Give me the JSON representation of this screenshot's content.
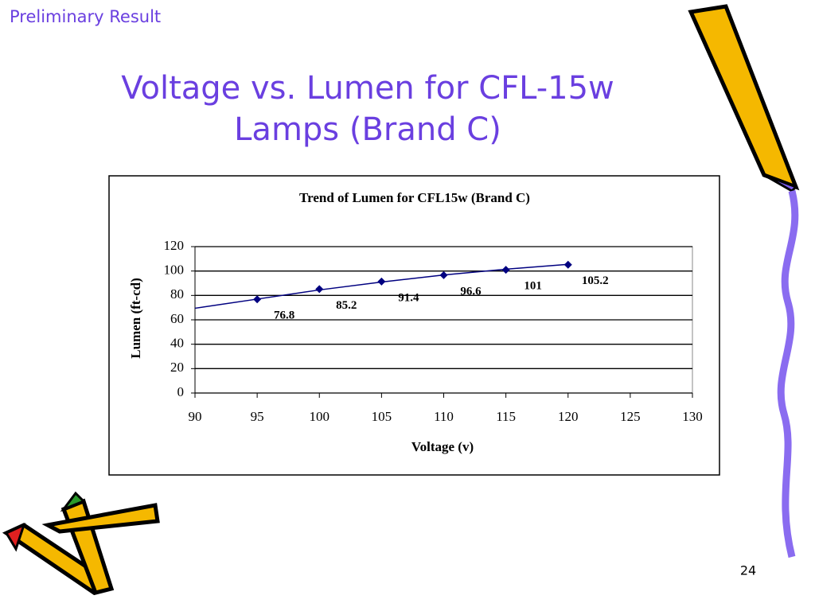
{
  "header_label": "Preliminary Result",
  "title_lines": [
    "Voltage vs. Lumen for CFL-15w",
    "Lamps (Brand C)"
  ],
  "page_number": "24",
  "chart_data": {
    "type": "scatter",
    "title": "Trend of Lumen for CFL15w (Brand C)",
    "x_label": "Voltage (v)",
    "y_label": "Lumen (ft-cd)",
    "x": [
      95,
      100,
      105,
      110,
      115,
      120
    ],
    "series": [
      {
        "color": "#000080",
        "values": [
          76.8,
          85.2,
          91.4,
          96.6,
          101,
          105.2
        ]
      }
    ],
    "trendline": {
      "color": "#000080",
      "x": [
        90,
        95,
        100,
        105,
        110,
        115,
        120
      ],
      "values": [
        69.5,
        77,
        84.5,
        91,
        96.8,
        101.5,
        105.5
      ]
    },
    "xlim": [
      90,
      130
    ],
    "xticks": [
      90,
      95,
      100,
      105,
      110,
      115,
      120,
      125,
      130
    ],
    "ylim": [
      0,
      120
    ],
    "yticks": [
      0,
      20,
      40,
      60,
      80,
      100,
      120
    ],
    "grid": true
  }
}
